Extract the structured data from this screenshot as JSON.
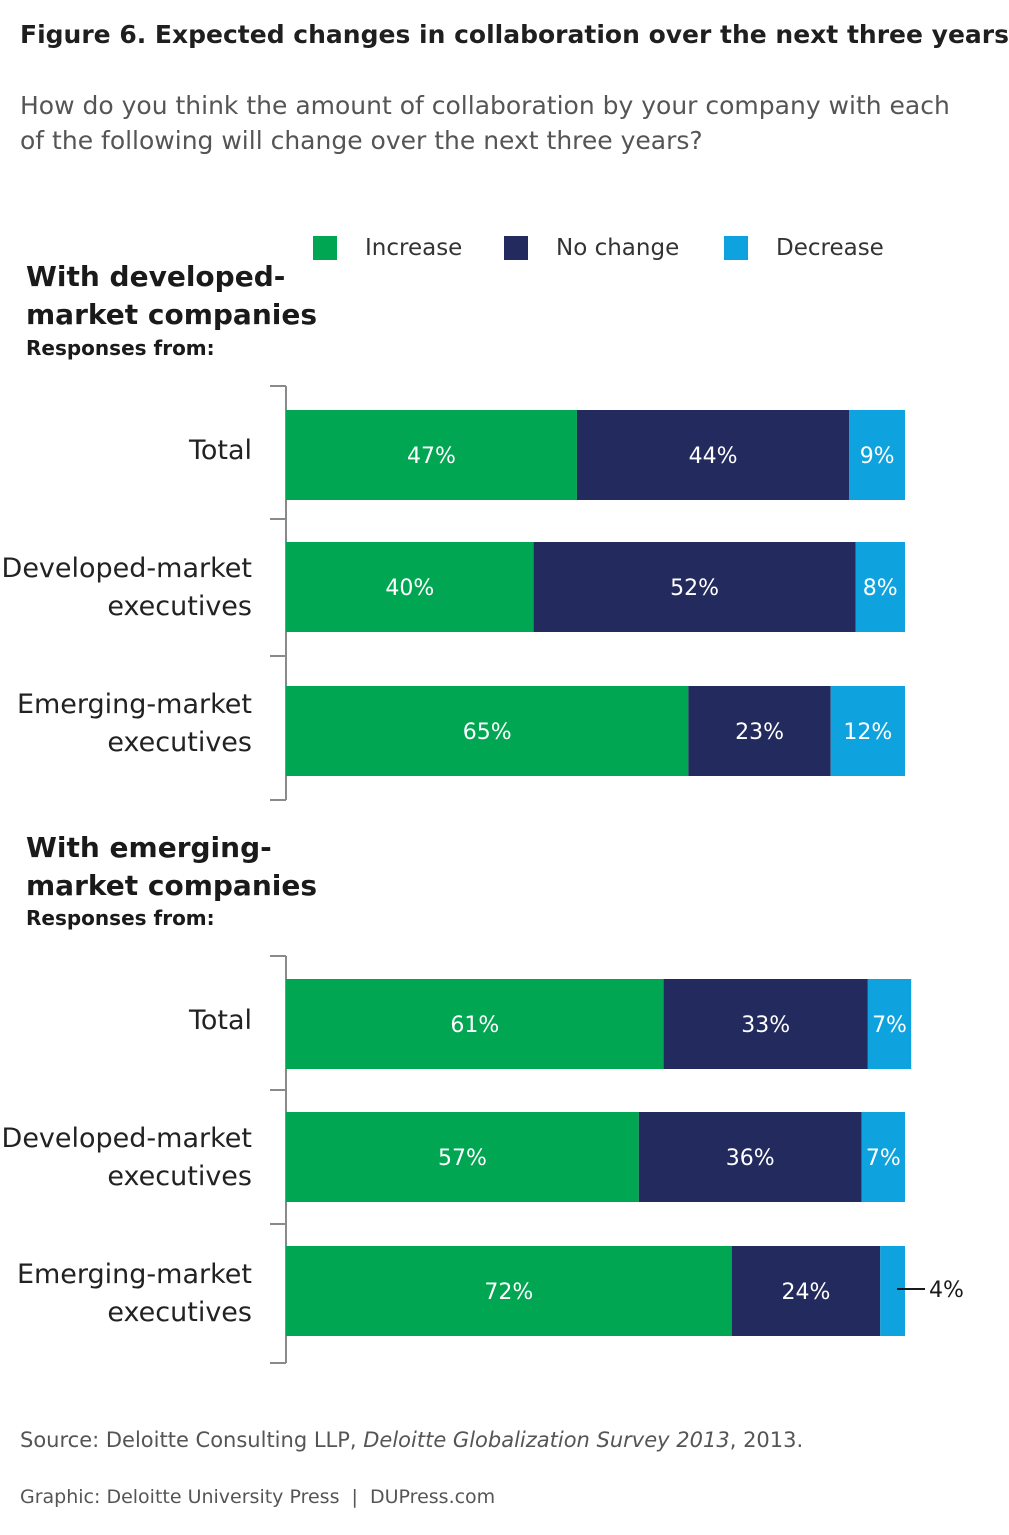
{
  "title": "Figure 6. Expected changes in collaboration over the next three years",
  "question": "How do you think the amount of collaboration by your company with each of the following will change over the next three years?",
  "legend": [
    {
      "label": "Increase",
      "color": "#00a651"
    },
    {
      "label": "No change",
      "color": "#232a5e"
    },
    {
      "label": "Decrease",
      "color": "#0ea3de"
    }
  ],
  "chart_data": [
    {
      "type": "bar",
      "orientation": "horizontal",
      "stacked": true,
      "title": "With developed-market companies",
      "subtitle": "Responses from:",
      "categories": [
        "Total",
        "Developed-market executives",
        "Emerging-market executives"
      ],
      "series": [
        {
          "name": "Increase",
          "values": [
            47,
            40,
            65
          ],
          "labels": [
            "47%",
            "40%",
            "65%"
          ]
        },
        {
          "name": "No change",
          "values": [
            44,
            52,
            23
          ],
          "labels": [
            "44%",
            "52%",
            "23%"
          ]
        },
        {
          "name": "Decrease",
          "values": [
            9,
            8,
            12
          ],
          "labels": [
            "9%",
            "8%",
            "12%"
          ]
        }
      ],
      "xlim": [
        0,
        100
      ]
    },
    {
      "type": "bar",
      "orientation": "horizontal",
      "stacked": true,
      "title": "With emerging-market companies",
      "subtitle": "Responses from:",
      "categories": [
        "Total",
        "Developed-market executives",
        "Emerging-market executives"
      ],
      "series": [
        {
          "name": "Increase",
          "values": [
            61,
            57,
            72
          ],
          "labels": [
            "61%",
            "57%",
            "72%"
          ]
        },
        {
          "name": "No change",
          "values": [
            33,
            36,
            24
          ],
          "labels": [
            "33%",
            "36%",
            "24%"
          ]
        },
        {
          "name": "Decrease",
          "values": [
            7,
            7,
            4
          ],
          "labels": [
            "7%",
            "7%",
            "4%"
          ]
        }
      ],
      "xlim": [
        0,
        100
      ]
    }
  ],
  "sections": [
    {
      "heading_line1": "With developed-",
      "heading_line2": "market companies",
      "subheading": "Responses from:",
      "categories": [
        {
          "line1": "Total",
          "line2": ""
        },
        {
          "line1": "Developed-market",
          "line2": "executives"
        },
        {
          "line1": "Emerging-market",
          "line2": "executives"
        }
      ]
    },
    {
      "heading_line1": "With emerging-",
      "heading_line2": "market companies",
      "subheading": "Responses from:",
      "categories": [
        {
          "line1": "Total",
          "line2": ""
        },
        {
          "line1": "Developed-market",
          "line2": "executives"
        },
        {
          "line1": "Emerging-market",
          "line2": "executives"
        }
      ]
    }
  ],
  "footer": {
    "source_prefix": "Source: Deloitte Consulting LLP, ",
    "source_title": "Deloitte Globalization Survey 2013",
    "source_suffix": ", 2013.",
    "graphic": "Graphic: Deloitte University Press  |  DUPress.com"
  }
}
